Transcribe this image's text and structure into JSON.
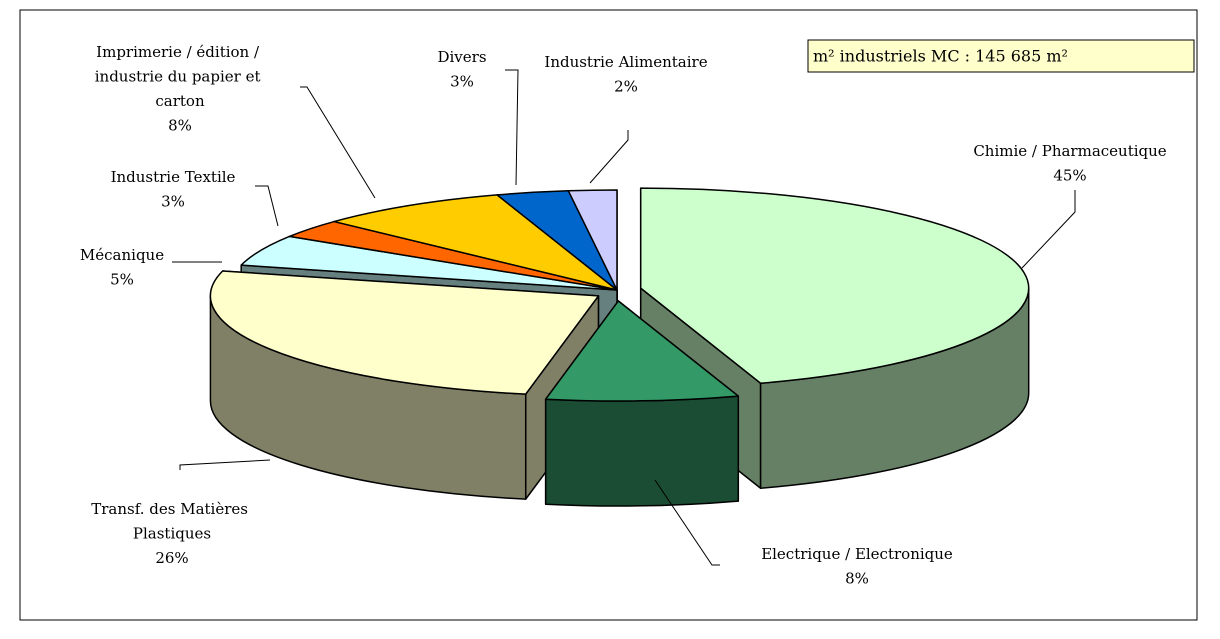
{
  "chart_data": {
    "type": "pie3d",
    "annotation": "m² industriels MC : 145 685 m²",
    "categories": [
      "Chimie / Pharmaceutique",
      "Electrique / Electronique",
      "Transf. des Matières Plastiques",
      "Mécanique",
      "Industrie Textile",
      "Imprimerie / édition / industrie du papier et carton",
      "Divers",
      "Industrie Alimentaire"
    ],
    "values": [
      45,
      8,
      26,
      5,
      3,
      8,
      3,
      2
    ],
    "value_labels": [
      "45%",
      "8%",
      "26%",
      "5%",
      "3%",
      "8%",
      "3%",
      "2%"
    ],
    "colors": [
      "#ccffcc",
      "#339966",
      "#ffffcc",
      "#ccffff",
      "#ff6600",
      "#ffcc00",
      "#0066cc",
      "#ccccff"
    ]
  }
}
